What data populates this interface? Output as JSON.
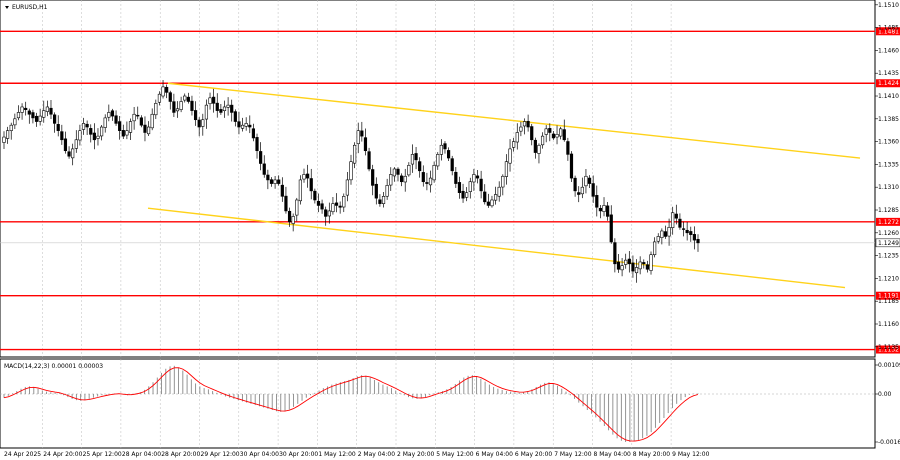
{
  "chart_data": [
    {
      "type": "candlestick",
      "symbol_timeframe": "EURUSD,H1",
      "y_ticks": [
        "1.1510",
        "1.1485",
        "1.1460",
        "1.1435",
        "1.1410",
        "1.1385",
        "1.1360",
        "1.1335",
        "1.1310",
        "1.1285",
        "1.1260",
        "1.1235",
        "1.1210",
        "1.1185",
        "1.1160",
        "1.1135"
      ],
      "ylim": [
        1.1126,
        1.1512
      ],
      "levels": [
        {
          "value": 1.1481,
          "label": "1.1481",
          "color": "#ff0000"
        },
        {
          "value": 1.1424,
          "label": "1.1424",
          "color": "#ff0000"
        },
        {
          "value": 1.1272,
          "label": "1.1272",
          "color": "#ff0000"
        },
        {
          "value": 1.1191,
          "label": "1.1191",
          "color": "#ff0000"
        },
        {
          "value": 1.1132,
          "label": "1.1132",
          "color": "#ff0000"
        }
      ],
      "current_price": {
        "value": 1.1249,
        "label": "1.1249"
      },
      "channel": {
        "color": "#ffd21a",
        "upper": [
          [
            "28 Apr 04:00",
            1.1424
          ],
          [
            "9 May 20:00",
            1.1342
          ]
        ],
        "lower": [
          [
            "24 Apr 20:00",
            1.1287
          ],
          [
            "9 May 20:00",
            1.12
          ]
        ]
      },
      "x_labels": [
        "24 Apr 2025",
        "24 Apr 20:00",
        "25 Apr 12:00",
        "28 Apr 04:00",
        "28 Apr 20:00",
        "29 Apr 12:00",
        "30 Apr 04:00",
        "30 Apr 20:00",
        "1 May 12:00",
        "2 May 04:00",
        "2 May 20:00",
        "5 May 12:00",
        "6 May 04:00",
        "6 May 20:00",
        "7 May 12:00",
        "8 May 04:00",
        "8 May 20:00",
        "9 May 12:00"
      ],
      "closes": [
        1.1365,
        1.1372,
        1.1378,
        1.1385,
        1.1392,
        1.1398,
        1.1395,
        1.139,
        1.1386,
        1.1382,
        1.1388,
        1.1394,
        1.1398,
        1.139,
        1.138,
        1.1372,
        1.1362,
        1.135,
        1.1344,
        1.1352,
        1.1362,
        1.1372,
        1.138,
        1.1376,
        1.1368,
        1.1362,
        1.1366,
        1.1376,
        1.1386,
        1.1392,
        1.1388,
        1.138,
        1.1372,
        1.1366,
        1.1372,
        1.1382,
        1.139,
        1.1388,
        1.1378,
        1.137,
        1.1376,
        1.139,
        1.1402,
        1.1412,
        1.142,
        1.1414,
        1.1404,
        1.1392,
        1.1396,
        1.1404,
        1.141,
        1.1404,
        1.1394,
        1.1384,
        1.1376,
        1.1384,
        1.14,
        1.1408,
        1.1402,
        1.1394,
        1.1392,
        1.1398,
        1.14,
        1.1392,
        1.1382,
        1.1376,
        1.1378,
        1.138,
        1.1376,
        1.1364,
        1.135,
        1.1336,
        1.1324,
        1.1318,
        1.1314,
        1.1318,
        1.1314,
        1.13,
        1.1284,
        1.1272,
        1.1278,
        1.1296,
        1.1318,
        1.1324,
        1.132,
        1.1306,
        1.1296,
        1.129,
        1.1286,
        1.1278,
        1.1284,
        1.1292,
        1.129,
        1.1288,
        1.13,
        1.1318,
        1.1338,
        1.1356,
        1.1372,
        1.1366,
        1.135,
        1.133,
        1.1312,
        1.1298,
        1.1292,
        1.13,
        1.1312,
        1.1324,
        1.133,
        1.1324,
        1.1316,
        1.1322,
        1.1334,
        1.1346,
        1.134,
        1.1328,
        1.1316,
        1.1314,
        1.132,
        1.1334,
        1.1346,
        1.1356,
        1.1352,
        1.1342,
        1.1328,
        1.1314,
        1.1304,
        1.1298,
        1.1304,
        1.1316,
        1.1324,
        1.132,
        1.1306,
        1.1294,
        1.129,
        1.1296,
        1.1302,
        1.131,
        1.1322,
        1.1338,
        1.1352,
        1.136,
        1.137,
        1.1376,
        1.1382,
        1.1376,
        1.1362,
        1.1348,
        1.1356,
        1.1366,
        1.1374,
        1.137,
        1.1364,
        1.1368,
        1.1374,
        1.1362,
        1.1346,
        1.132,
        1.1306,
        1.1302,
        1.131,
        1.1322,
        1.1314,
        1.13,
        1.1288,
        1.1284,
        1.129,
        1.1278,
        1.125,
        1.1226,
        1.122,
        1.1224,
        1.123,
        1.1226,
        1.1218,
        1.1222,
        1.1228,
        1.1226,
        1.122,
        1.1236,
        1.125,
        1.1256,
        1.1262,
        1.1256,
        1.1266,
        1.1282,
        1.1276,
        1.1266,
        1.1264,
        1.126,
        1.1258,
        1.1252,
        1.1249
      ]
    },
    {
      "type": "macd",
      "title": "MACD(14,22,3) 0.00001 0.00003",
      "y_ticks": [
        "0.00109",
        "0.00",
        "-0.00169"
      ],
      "ylim": [
        -0.00169,
        0.00109
      ],
      "hist": [
        -0.00012,
        -6e-05,
        2e-05,
        0.0001,
        0.00018,
        0.00024,
        0.00026,
        0.00024,
        0.00018,
        0.00012,
        8e-05,
        6e-05,
        4e-05,
        2e-05,
        -4e-05,
        -0.0001,
        -0.00016,
        -0.0002,
        -0.00022,
        -0.0002,
        -0.00016,
        -0.00012,
        -8e-05,
        -4e-05,
        -2e-05,
        0.0,
        2e-05,
        2e-05,
        -2e-05,
        -4e-05,
        -2e-05,
        2e-05,
        6e-05,
        0.00014,
        0.00026,
        0.0004,
        0.00056,
        0.00072,
        0.00086,
        0.00094,
        0.00096,
        0.0009,
        0.0008,
        0.00066,
        0.0005,
        0.00036,
        0.00026,
        0.0002,
        0.00016,
        0.0001,
        4e-05,
        -2e-05,
        -8e-05,
        -0.00012,
        -0.00016,
        -0.0002,
        -0.00024,
        -0.00028,
        -0.00032,
        -0.00036,
        -0.0004,
        -0.00044,
        -0.00048,
        -0.00052,
        -0.00056,
        -0.00058,
        -0.00056,
        -0.0005,
        -0.00042,
        -0.00032,
        -0.00022,
        -0.00012,
        -4e-05,
        4e-05,
        0.00012,
        0.0002,
        0.00026,
        0.00032,
        0.00036,
        0.0004,
        0.00044,
        0.00048,
        0.00054,
        0.0006,
        0.00064,
        0.00062,
        0.00056,
        0.00048,
        0.0004,
        0.00032,
        0.00026,
        0.0002,
        0.00012,
        4e-05,
        -4e-05,
        -0.0001,
        -0.00014,
        -0.00016,
        -0.00014,
        -0.0001,
        -4e-05,
        2e-05,
        6e-05,
        0.0001,
        0.00016,
        0.00024,
        0.00034,
        0.00046,
        0.00056,
        0.00062,
        0.00064,
        0.0006,
        0.00052,
        0.00042,
        0.00032,
        0.00024,
        0.00018,
        0.00014,
        0.0001,
        8e-05,
        6e-05,
        4e-05,
        6e-05,
        0.0001,
        0.00016,
        0.00024,
        0.00032,
        0.00038,
        0.0004,
        0.00036,
        0.00028,
        0.00018,
        8e-05,
        -4e-05,
        -0.00016,
        -0.00028,
        -0.0004,
        -0.00052,
        -0.00064,
        -0.00076,
        -0.0009,
        -0.00104,
        -0.00118,
        -0.00132,
        -0.00144,
        -0.00152,
        -0.00156,
        -0.00156,
        -0.00154,
        -0.0015,
        -0.00144,
        -0.00136,
        -0.00124,
        -0.0011,
        -0.00094,
        -0.00078,
        -0.00062,
        -0.00046,
        -0.00032,
        -0.0002,
        -0.0001,
        -2e-05,
        1e-05,
        2e-05
      ],
      "signal_color": "#ff0000"
    }
  ]
}
